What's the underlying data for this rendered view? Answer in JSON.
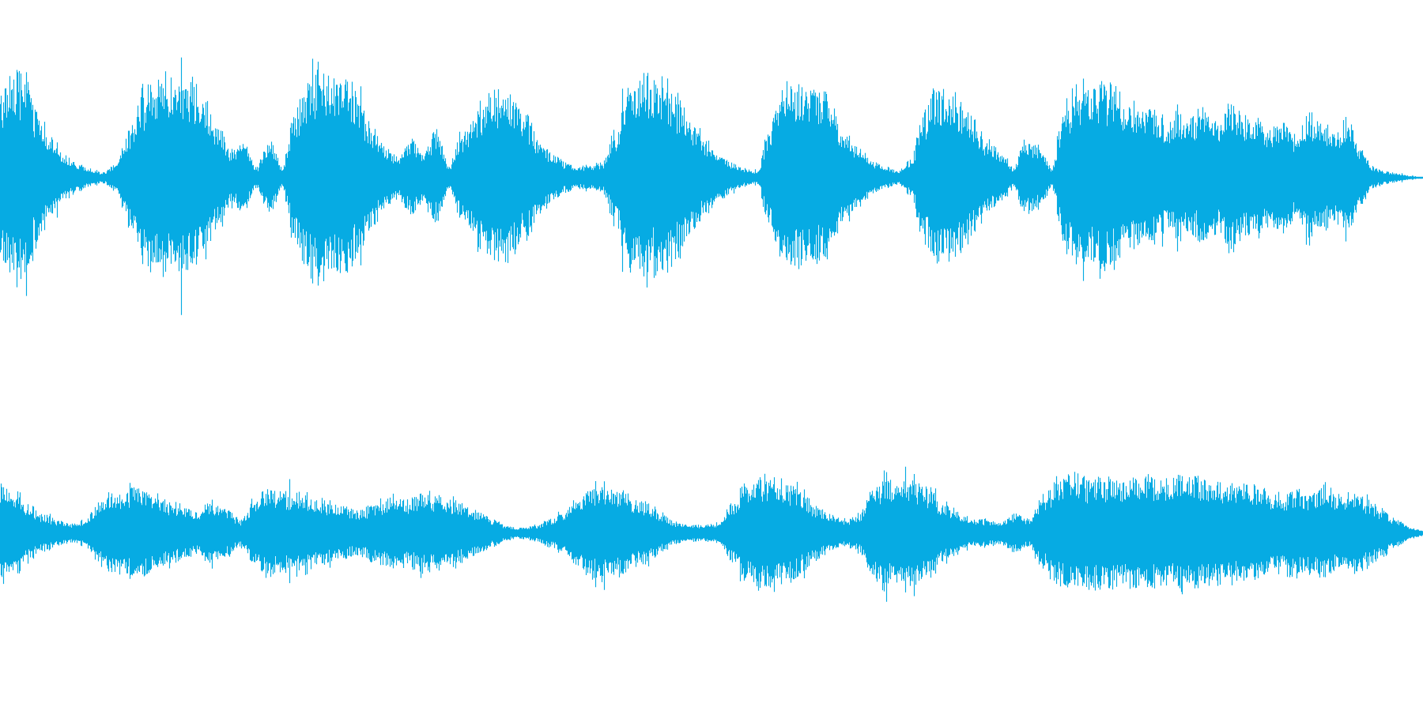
{
  "waveform": {
    "color": "#06ABE3",
    "channels": [
      {
        "name": "",
        "envelope": [
          0.76,
          0.98,
          0.87,
          0.6,
          0.38,
          0.22,
          0.12,
          0.08,
          0.05,
          0.12,
          0.42,
          0.78,
          0.86,
          0.9,
          0.92,
          0.84,
          0.7,
          0.48,
          0.25,
          0.32,
          0.1,
          0.36,
          0.1,
          0.62,
          0.86,
          0.94,
          0.93,
          0.88,
          0.7,
          0.45,
          0.28,
          0.2,
          0.35,
          0.22,
          0.42,
          0.12,
          0.4,
          0.6,
          0.74,
          0.78,
          0.72,
          0.56,
          0.36,
          0.24,
          0.14,
          0.1,
          0.11,
          0.14,
          0.44,
          0.86,
          0.98,
          0.9,
          0.84,
          0.7,
          0.5,
          0.34,
          0.22,
          0.14,
          0.08,
          0.06,
          0.44,
          0.82,
          0.86,
          0.84,
          0.8,
          0.6,
          0.4,
          0.26,
          0.16,
          0.1,
          0.06,
          0.16,
          0.58,
          0.78,
          0.8,
          0.7,
          0.52,
          0.34,
          0.22,
          0.1,
          0.34,
          0.3,
          0.1,
          0.62,
          0.8,
          0.82,
          0.84,
          0.8,
          0.7,
          0.58,
          0.6,
          0.52,
          0.62,
          0.56,
          0.68,
          0.54,
          0.7,
          0.58,
          0.52,
          0.46,
          0.5,
          0.38,
          0.6,
          0.48,
          0.42,
          0.56,
          0.3,
          0.1,
          0.06,
          0.04,
          0.02,
          0.0
        ]
      },
      {
        "name": "",
        "envelope": [
          0.8,
          0.64,
          0.42,
          0.28,
          0.2,
          0.14,
          0.2,
          0.46,
          0.6,
          0.64,
          0.62,
          0.56,
          0.48,
          0.4,
          0.3,
          0.44,
          0.36,
          0.2,
          0.48,
          0.62,
          0.6,
          0.62,
          0.56,
          0.48,
          0.44,
          0.34,
          0.38,
          0.48,
          0.54,
          0.5,
          0.6,
          0.54,
          0.5,
          0.42,
          0.3,
          0.2,
          0.1,
          0.08,
          0.12,
          0.2,
          0.3,
          0.5,
          0.66,
          0.7,
          0.62,
          0.52,
          0.4,
          0.28,
          0.16,
          0.12,
          0.12,
          0.16,
          0.44,
          0.74,
          0.8,
          0.82,
          0.72,
          0.56,
          0.36,
          0.26,
          0.2,
          0.28,
          0.7,
          0.82,
          0.8,
          0.72,
          0.6,
          0.44,
          0.32,
          0.22,
          0.2,
          0.16,
          0.28,
          0.2,
          0.52,
          0.78,
          0.84,
          0.8,
          0.84,
          0.78,
          0.8,
          0.82,
          0.8,
          0.76,
          0.84,
          0.82,
          0.78,
          0.74,
          0.72,
          0.68,
          0.62,
          0.6,
          0.66,
          0.58,
          0.7,
          0.54,
          0.6,
          0.5,
          0.36,
          0.22,
          0.1,
          0.04
        ]
      }
    ]
  }
}
